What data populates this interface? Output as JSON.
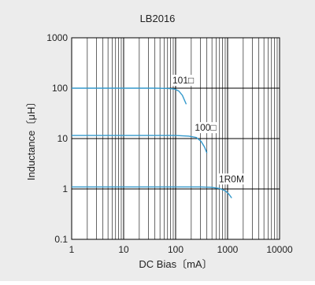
{
  "chart_data": {
    "type": "line",
    "title": "LB2016",
    "xlabel": "DC Bias〔mA〕",
    "ylabel": "Inductance〔μH〕",
    "x_scale": "log",
    "y_scale": "log",
    "xlim": [
      1,
      10000
    ],
    "ylim": [
      0.1,
      1000
    ],
    "x_ticks": [
      {
        "value": 1,
        "label": "1"
      },
      {
        "value": 10,
        "label": "10"
      },
      {
        "value": 100,
        "label": "100"
      },
      {
        "value": 1000,
        "label": "1000"
      },
      {
        "value": 10000,
        "label": "10000"
      }
    ],
    "y_ticks": [
      {
        "value": 0.1,
        "label": "0.1"
      },
      {
        "value": 1,
        "label": "1"
      },
      {
        "value": 10,
        "label": "10"
      },
      {
        "value": 100,
        "label": "100"
      },
      {
        "value": 1000,
        "label": "1000"
      }
    ],
    "grid": true,
    "line_color": "#3399cc",
    "series": [
      {
        "name": "101□",
        "points": [
          [
            1,
            100
          ],
          [
            40,
            100
          ],
          [
            70,
            99
          ],
          [
            95,
            96
          ],
          [
            115,
            88
          ],
          [
            135,
            72
          ],
          [
            160,
            48
          ]
        ]
      },
      {
        "name": "100□",
        "points": [
          [
            1,
            11.5
          ],
          [
            100,
            11.5
          ],
          [
            180,
            11.2
          ],
          [
            250,
            10.5
          ],
          [
            310,
            8.8
          ],
          [
            360,
            6.8
          ],
          [
            400,
            5.2
          ]
        ]
      },
      {
        "name": "1R0M",
        "points": [
          [
            1,
            1.1
          ],
          [
            300,
            1.1
          ],
          [
            500,
            1.08
          ],
          [
            700,
            1.02
          ],
          [
            900,
            0.92
          ],
          [
            1050,
            0.8
          ],
          [
            1200,
            0.66
          ]
        ]
      }
    ]
  }
}
